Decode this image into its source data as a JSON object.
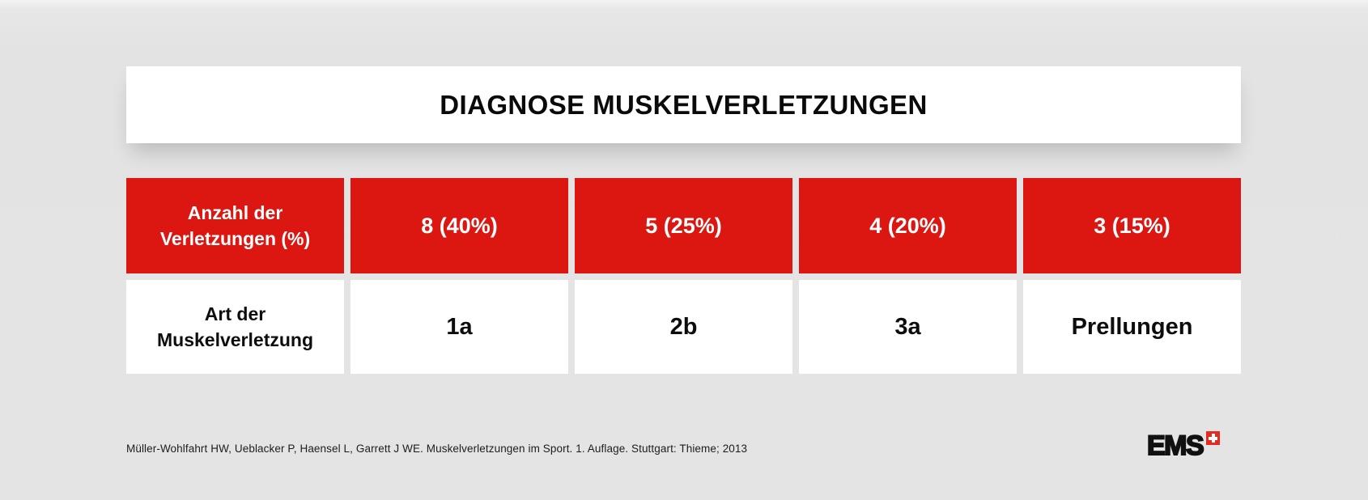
{
  "page": {
    "title": "DIAGNOSE MUSKELVERLETZUNGEN",
    "citation": "Müller-Wohlfahrt HW, Ueblacker P, Haensel L, Garrett J WE. Muskelverletzungen im Sport. 1. Auflage. Stuttgart: Thieme; 2013",
    "logo": {
      "text": "EMS",
      "icon": "swiss-cross-icon"
    }
  },
  "colors": {
    "accent_red": "#dc1712",
    "cross_red": "#e52a20",
    "background_gray": "#e4e4e5",
    "panel_white": "#ffffff",
    "text_black": "#0d0d0d",
    "text_white": "#ffffff"
  },
  "table": {
    "count_row": {
      "label_lines": [
        "Anzahl der",
        "Verletzungen (%)"
      ],
      "cells": [
        "8 (40%)",
        "5 (25%)",
        "4 (20%)",
        "3 (15%)"
      ]
    },
    "type_row": {
      "label_lines": [
        "Art der",
        "Muskelverletzung"
      ],
      "cells": [
        "1a",
        "2b",
        "3a",
        "Prellungen"
      ]
    }
  },
  "chart_data": {
    "type": "table",
    "title": "Diagnose Muskelverletzungen",
    "row_headers": [
      "Anzahl der Verletzungen (%)",
      "Art der Muskelverletzung"
    ],
    "injury_types": [
      "1a",
      "2b",
      "3a",
      "Prellungen"
    ],
    "counts": [
      8,
      5,
      4,
      3
    ],
    "percentages": [
      40,
      25,
      20,
      15
    ],
    "source": "Müller-Wohlfahrt HW, Ueblacker P, Haensel L, Garrett J WE. Muskelverletzungen im Sport. 1. Auflage. Stuttgart: Thieme; 2013"
  }
}
